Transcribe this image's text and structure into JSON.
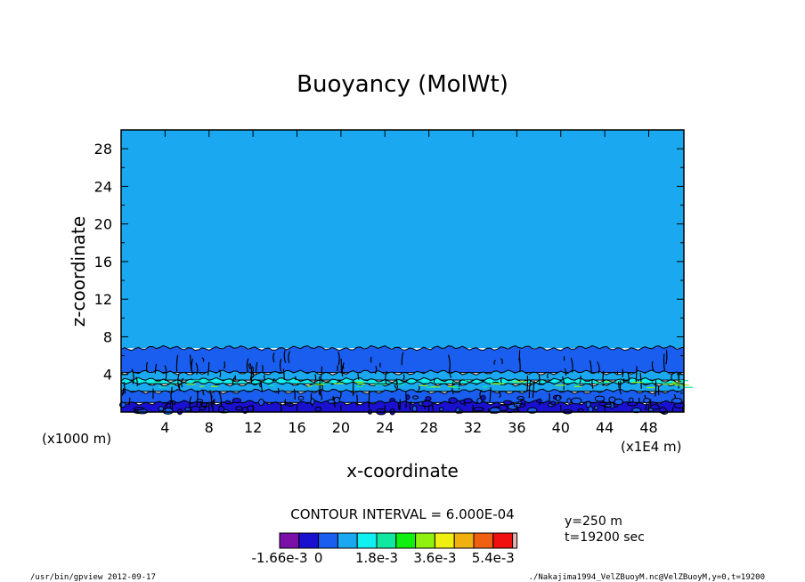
{
  "chart_data": {
    "type": "contour",
    "title": "Buoyancy (MolWt)",
    "xlabel": "x-coordinate",
    "ylabel": "z-coordinate",
    "x_unit_left": "(x1000 m)",
    "x_unit_right": "(x1E4 m)",
    "xlim": [
      0,
      51.2
    ],
    "ylim": [
      0,
      30
    ],
    "xticks": [
      4,
      8,
      12,
      16,
      20,
      24,
      28,
      32,
      36,
      40,
      44,
      48
    ],
    "yticks": [
      4,
      8,
      12,
      16,
      20,
      24,
      28
    ],
    "contour_interval_text": "CONTOUR INTERVAL = 6.000E-04",
    "info": [
      "y=250 m",
      "t=19200 sec"
    ],
    "colorbar": {
      "colors": [
        "#7a10a8",
        "#1a10d0",
        "#1a5ef0",
        "#1aa8f0",
        "#10f0f0",
        "#10e8a0",
        "#10f010",
        "#90f010",
        "#f0f010",
        "#f0b010",
        "#f06010",
        "#f01010",
        "#f0b0b0"
      ],
      "labels": [
        "-1.66e-3",
        "0",
        "1.8e-3",
        "3.6e-3",
        "5.4e-3"
      ],
      "label_slots": [
        0,
        2,
        5,
        8,
        11
      ]
    },
    "layers": [
      {
        "z_bottom": 6.8,
        "z_top": 30,
        "color": "#1aa8f0"
      },
      {
        "z_bottom": 4.2,
        "z_top": 6.8,
        "color": "#1a5ef0"
      },
      {
        "z_bottom": 3.4,
        "z_top": 4.2,
        "color": "#1aa8f0"
      },
      {
        "z_bottom": 3.0,
        "z_top": 3.4,
        "color": "#10f0f0"
      },
      {
        "z_bottom": 2.2,
        "z_top": 3.0,
        "color": "#1aa8f0"
      },
      {
        "z_bottom": 1.0,
        "z_top": 2.2,
        "color": "#1a5ef0"
      },
      {
        "z_bottom": 0.0,
        "z_top": 1.0,
        "color": "#1a10d0"
      }
    ]
  },
  "footer": {
    "left": "/usr/bin/gpview  2012-09-17",
    "right": "./Nakajima1994_VelZBuoyM.nc@VelZBuoyM,y=0,t=19200"
  }
}
